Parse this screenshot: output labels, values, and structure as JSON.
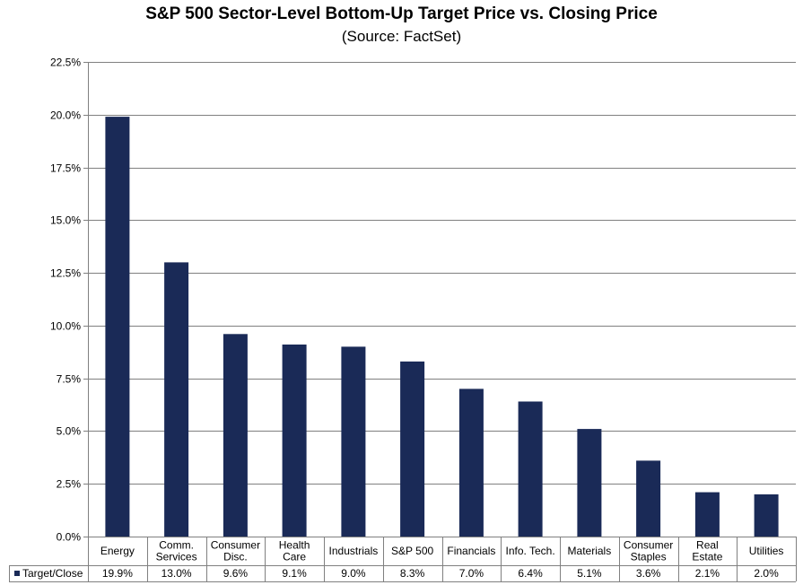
{
  "chart_data": {
    "type": "bar",
    "title": "S&P 500 Sector-Level Bottom-Up Target Price vs. Closing Price",
    "subtitle": "(Source: FactSet)",
    "xlabel": "",
    "ylabel": "",
    "categories": [
      [
        "Energy"
      ],
      [
        "Comm.",
        "Services"
      ],
      [
        "Consumer",
        "Disc."
      ],
      [
        "Health",
        "Care"
      ],
      [
        "Industrials"
      ],
      [
        "S&P 500"
      ],
      [
        "Financials"
      ],
      [
        "Info. Tech."
      ],
      [
        "Materials"
      ],
      [
        "Consumer",
        "Staples"
      ],
      [
        "Real",
        "Estate"
      ],
      [
        "Utilities"
      ]
    ],
    "series": [
      {
        "name": "Target/Close",
        "values": [
          19.9,
          13.0,
          9.6,
          9.1,
          9.0,
          8.3,
          7.0,
          6.4,
          5.1,
          3.6,
          2.1,
          2.0
        ],
        "labels": [
          "19.9%",
          "13.0%",
          "9.6%",
          "9.1%",
          "9.0%",
          "8.3%",
          "7.0%",
          "6.4%",
          "5.1%",
          "3.6%",
          "2.1%",
          "2.0%"
        ],
        "color": "#1a2a57"
      }
    ],
    "ylim": [
      0,
      22.5
    ],
    "yticks": [
      0,
      2.5,
      5,
      7.5,
      10,
      12.5,
      15,
      17.5,
      20,
      22.5
    ],
    "ytick_labels": [
      "0.0%",
      "2.5%",
      "5.0%",
      "7.5%",
      "10.0%",
      "12.5%",
      "15.0%",
      "17.5%",
      "20.0%",
      "22.5%"
    ],
    "grid": true,
    "data_table": true,
    "legend": "data-table-left"
  },
  "colors": {
    "bar": "#1a2a57",
    "grid": "#808080",
    "axis": "#808080",
    "background": "#ffffff"
  }
}
